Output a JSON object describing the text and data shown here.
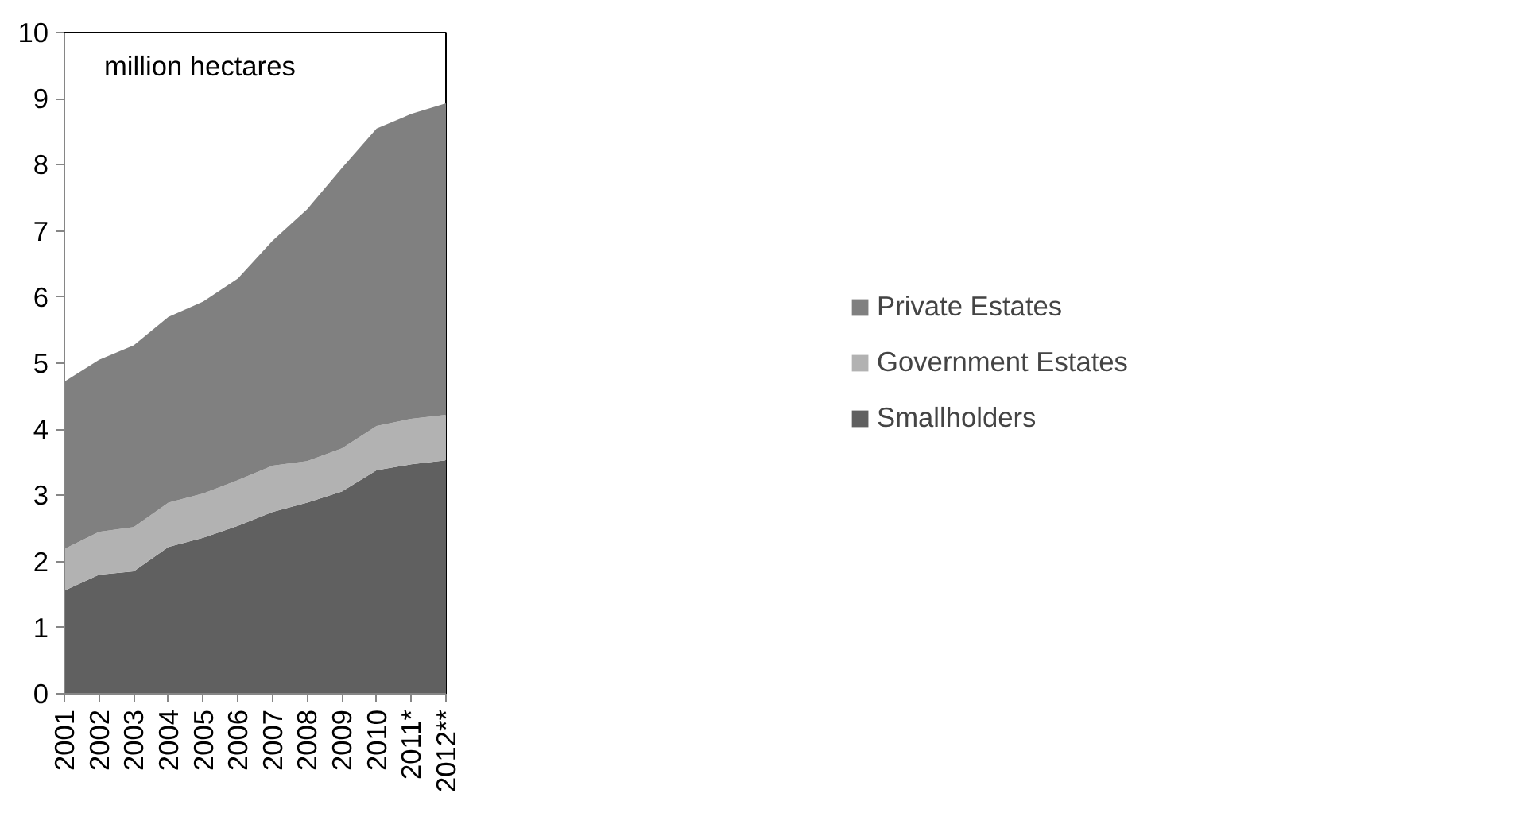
{
  "chart_data": {
    "type": "area",
    "stacked": true,
    "categories": [
      "2001",
      "2002",
      "2003",
      "2004",
      "2005",
      "2006",
      "2007",
      "2008",
      "2009",
      "2010",
      "2011*",
      "2012**"
    ],
    "series": [
      {
        "name": "Smallholders",
        "color": "#606060",
        "values": [
          1.56,
          1.8,
          1.85,
          2.22,
          2.36,
          2.54,
          2.75,
          2.89,
          3.06,
          3.38,
          3.47,
          3.53
        ]
      },
      {
        "name": "Government Estates",
        "color": "#b2b2b2",
        "values": [
          0.63,
          0.65,
          0.67,
          0.67,
          0.67,
          0.69,
          0.7,
          0.63,
          0.65,
          0.67,
          0.69,
          0.69
        ]
      },
      {
        "name": "Private Estates",
        "color": "#808080",
        "values": [
          2.53,
          2.6,
          2.75,
          2.81,
          2.9,
          3.05,
          3.4,
          3.81,
          4.24,
          4.5,
          4.61,
          4.71
        ]
      }
    ],
    "ylim": [
      0,
      10
    ],
    "yticks": [
      0,
      1,
      2,
      3,
      4,
      5,
      6,
      7,
      8,
      9,
      10
    ],
    "annotations": [
      "million hectares"
    ],
    "grid": false,
    "legend": "right"
  }
}
